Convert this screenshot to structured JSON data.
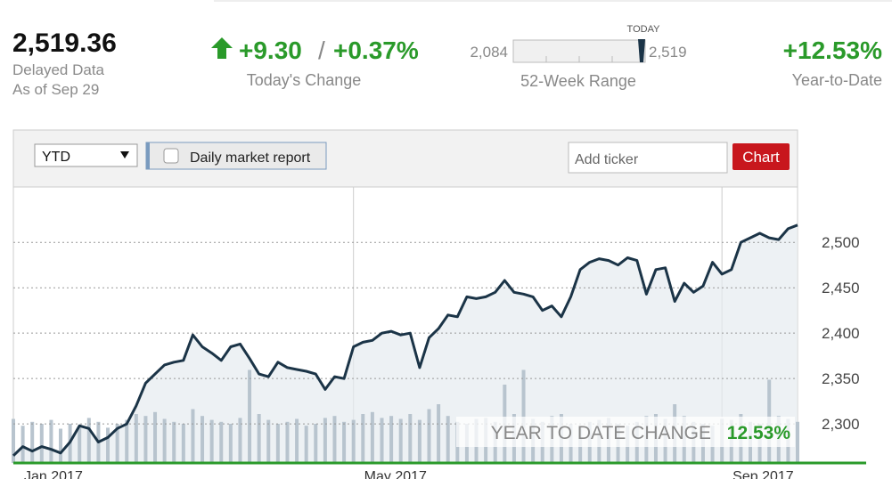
{
  "quote": {
    "price": "2,519.36",
    "delayed": "Delayed Data",
    "as_of": "As of Sep 29",
    "change": "+9.30",
    "separator": "/",
    "change_pct": "+0.37%",
    "change_label": "Today's Change",
    "range_low": "2,084",
    "range_high": "2,519",
    "range_today": "TODAY",
    "range_label": "52-Week Range",
    "ytd": "+12.53%",
    "ytd_label": "Year-to-Date"
  },
  "toolbar": {
    "period": "YTD",
    "report": "Daily market report",
    "ticker_placeholder": "Add ticker",
    "button": "Chart"
  },
  "chart_data": {
    "type": "line",
    "categories": [
      "Jan 2017",
      null,
      null,
      null,
      null,
      null,
      null,
      null,
      null,
      null,
      null,
      null,
      null,
      null,
      null,
      null,
      null,
      null,
      null,
      null,
      null,
      null,
      null,
      null,
      null,
      null,
      null,
      null,
      null,
      null,
      null,
      null,
      null,
      null,
      null,
      null,
      "May 2017",
      null,
      null,
      null,
      null,
      null,
      null,
      null,
      null,
      null,
      null,
      null,
      null,
      null,
      null,
      null,
      null,
      null,
      null,
      null,
      null,
      null,
      null,
      null,
      null,
      null,
      null,
      null,
      null,
      null,
      null,
      null,
      null,
      null,
      null,
      null,
      null,
      null,
      null,
      "Sep 2017",
      null,
      null,
      null,
      null,
      null,
      null,
      null,
      null
    ],
    "series": [
      {
        "color": "#1b3447",
        "values": [
          2265,
          2275,
          2270,
          2275,
          2272,
          2268,
          2280,
          2298,
          2295,
          2280,
          2285,
          2295,
          2300,
          2320,
          2345,
          2355,
          2365,
          2368,
          2370,
          2398,
          2385,
          2378,
          2370,
          2385,
          2388,
          2372,
          2355,
          2352,
          2368,
          2362,
          2360,
          2358,
          2355,
          2338,
          2352,
          2350,
          2385,
          2390,
          2392,
          2400,
          2402,
          2398,
          2400,
          2362,
          2395,
          2405,
          2420,
          2418,
          2440,
          2438,
          2440,
          2445,
          2458,
          2445,
          2443,
          2440,
          2425,
          2430,
          2418,
          2440,
          2470,
          2478,
          2482,
          2480,
          2475,
          2483,
          2480,
          2443,
          2470,
          2472,
          2435,
          2455,
          2445,
          2452,
          2478,
          2465,
          2470,
          2500,
          2505,
          2510,
          2505,
          2503,
          2515,
          2519
        ]
      },
      {
        "color": "#b8c4ce",
        "axis": "y2",
        "values": [
          45,
          38,
          42,
          40,
          44,
          35,
          40,
          38,
          46,
          42,
          36,
          40,
          44,
          50,
          48,
          52,
          45,
          42,
          40,
          55,
          48,
          44,
          42,
          40,
          46,
          95,
          50,
          44,
          40,
          42,
          45,
          38,
          40,
          46,
          48,
          42,
          44,
          50,
          52,
          46,
          48,
          45,
          50,
          44,
          55,
          60,
          48,
          42,
          40,
          45,
          46,
          42,
          80,
          50,
          95,
          45,
          42,
          48,
          50,
          40,
          38,
          42,
          44,
          46,
          40,
          38,
          42,
          48,
          50,
          45,
          60,
          48,
          42,
          40,
          38,
          45,
          44,
          50,
          42,
          40,
          85,
          48,
          45,
          42
        ]
      }
    ],
    "ylim": [
      2257,
      2561
    ],
    "yticks": [
      {
        "value": 2300,
        "label": "2,300"
      },
      {
        "value": 2350,
        "label": "2,350"
      },
      {
        "value": 2400,
        "label": "2,400"
      },
      {
        "value": 2450,
        "label": "2,450"
      },
      {
        "value": 2500,
        "label": "2,500"
      }
    ],
    "y2lim": [
      0,
      100
    ],
    "grid": true,
    "annotation": "YEAR TO DATE CHANGE",
    "annotation_value": "12.53%"
  }
}
